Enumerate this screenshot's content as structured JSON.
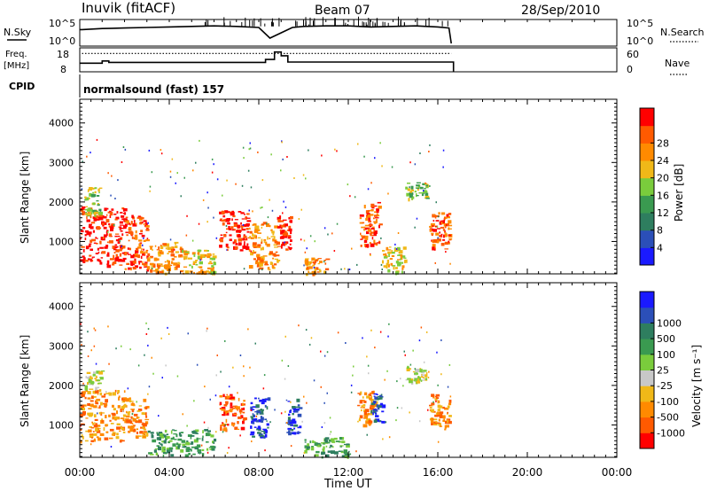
{
  "header": {
    "station": "Inuvik (fitACF)",
    "beam": "Beam 07",
    "date": "28/Sep/2010"
  },
  "labels": {
    "nsky": "N.Sky",
    "nsearch": "N.Search",
    "freq": "Freq.",
    "freq_unit": "[MHz]",
    "nave": "Nave",
    "cpid": "CPID",
    "cpid_value": "normalsound (fast) 157"
  },
  "colors": {
    "power": [
      "#1a1aff",
      "#2b4fb8",
      "#2e7e5f",
      "#3a9a50",
      "#7acc3c",
      "#f0b818",
      "#ff8a00",
      "#ff5a00",
      "#ff0000"
    ],
    "velocity": [
      "#ff0000",
      "#ff5a00",
      "#ff8a00",
      "#f0b818",
      "#c8c8c8",
      "#7acc3c",
      "#3a9a50",
      "#2e7e5f",
      "#2b4fb8",
      "#1a1aff"
    ]
  },
  "chart_data": [
    {
      "type": "line",
      "panel": "noise",
      "ylabel_left": "N.Sky",
      "ylabel_right": "N.Search",
      "yticks_left": [
        "10^5",
        "10^0"
      ],
      "yticks_right": [
        "10^5",
        "10^0"
      ],
      "x_hours": [
        0,
        0.1,
        1,
        2,
        3,
        4,
        5,
        6,
        7,
        8,
        8.5,
        9,
        9.5,
        10,
        11,
        12,
        13,
        14,
        15,
        16,
        16.5,
        16.6
      ],
      "sky_level": [
        0.62,
        0.62,
        0.66,
        0.68,
        0.7,
        0.72,
        0.74,
        0.76,
        0.74,
        0.7,
        0.3,
        0.5,
        0.7,
        0.74,
        0.76,
        0.76,
        0.72,
        0.74,
        0.76,
        0.72,
        0.68,
        0.1
      ]
    },
    {
      "type": "line",
      "panel": "frequency",
      "ylabel_left": "Freq. [MHz]",
      "ylabel_right": "Nave",
      "yticks_left": [
        "18",
        "8"
      ],
      "yticks_right": [
        "60",
        "0"
      ],
      "x_hours": [
        0,
        1.0,
        1.0,
        1.3,
        1.3,
        8.3,
        8.3,
        8.7,
        8.7,
        9.0,
        9.0,
        9.3,
        9.3,
        16.7
      ],
      "freq_mhz": [
        11.2,
        11.2,
        12.4,
        12.4,
        11.6,
        11.6,
        13.2,
        13.2,
        17.2,
        17.2,
        15.2,
        15.2,
        11.8,
        11.8
      ],
      "nave_dotted": 46
    },
    {
      "type": "heatmap",
      "panel": "power",
      "ylabel": "Slant Range [km]",
      "yticks": [
        "1000",
        "2000",
        "3000",
        "4000"
      ],
      "ylim": [
        180,
        4600
      ],
      "colorbar_label": "Power [dB]",
      "colorbar_ticks": [
        "4",
        "8",
        "12",
        "16",
        "20",
        "24",
        "28"
      ],
      "blobs": [
        {
          "x0": 0.0,
          "x1": 2.0,
          "y0": 400,
          "y1": 1900,
          "level": 8
        },
        {
          "x0": 0.2,
          "x1": 0.9,
          "y0": 1700,
          "y1": 2400,
          "level": 4
        },
        {
          "x0": 2.0,
          "x1": 3.0,
          "y0": 300,
          "y1": 1700,
          "level": 7
        },
        {
          "x0": 3.0,
          "x1": 4.5,
          "y0": 200,
          "y1": 1000,
          "level": 6
        },
        {
          "x0": 4.5,
          "x1": 6.0,
          "y0": 200,
          "y1": 800,
          "level": 5
        },
        {
          "x0": 6.2,
          "x1": 7.5,
          "y0": 800,
          "y1": 1800,
          "level": 8
        },
        {
          "x0": 7.5,
          "x1": 8.8,
          "y0": 300,
          "y1": 1500,
          "level": 6
        },
        {
          "x0": 8.8,
          "x1": 9.4,
          "y0": 800,
          "y1": 1700,
          "level": 8
        },
        {
          "x0": 10.0,
          "x1": 11.0,
          "y0": 200,
          "y1": 600,
          "level": 6
        },
        {
          "x0": 12.5,
          "x1": 13.4,
          "y0": 900,
          "y1": 2000,
          "level": 7
        },
        {
          "x0": 13.5,
          "x1": 14.5,
          "y0": 200,
          "y1": 900,
          "level": 5
        },
        {
          "x0": 14.5,
          "x1": 15.5,
          "y0": 2100,
          "y1": 2500,
          "level": 4
        },
        {
          "x0": 15.6,
          "x1": 16.5,
          "y0": 800,
          "y1": 1800,
          "level": 7
        }
      ]
    },
    {
      "type": "heatmap",
      "panel": "velocity",
      "ylabel": "Slant Range [km]",
      "yticks": [
        "1000",
        "2000",
        "3000",
        "4000"
      ],
      "ylim": [
        180,
        4600
      ],
      "colorbar_label": "Velocity [m s⁻¹]",
      "colorbar_ticks": [
        "-1000",
        "-500",
        "-100",
        "-25",
        "25",
        "100",
        "500",
        "1000"
      ],
      "blobs": [
        {
          "x0": 0.0,
          "x1": 2.0,
          "y0": 600,
          "y1": 1900,
          "level": 2
        },
        {
          "x0": 0.2,
          "x1": 1.0,
          "y0": 1900,
          "y1": 2400,
          "level": 4
        },
        {
          "x0": 2.0,
          "x1": 3.0,
          "y0": 700,
          "y1": 1700,
          "level": 2
        },
        {
          "x0": 3.0,
          "x1": 6.0,
          "y0": 250,
          "y1": 900,
          "level": 6
        },
        {
          "x0": 6.2,
          "x1": 7.3,
          "y0": 900,
          "y1": 1800,
          "level": 1
        },
        {
          "x0": 7.6,
          "x1": 8.4,
          "y0": 700,
          "y1": 1700,
          "level": 8
        },
        {
          "x0": 9.2,
          "x1": 9.8,
          "y0": 800,
          "y1": 1700,
          "level": 8
        },
        {
          "x0": 10.0,
          "x1": 12.0,
          "y0": 200,
          "y1": 700,
          "level": 6
        },
        {
          "x0": 12.4,
          "x1": 13.2,
          "y0": 1000,
          "y1": 1900,
          "level": 2
        },
        {
          "x0": 13.0,
          "x1": 13.5,
          "y0": 1100,
          "y1": 1800,
          "level": 8
        },
        {
          "x0": 14.5,
          "x1": 15.5,
          "y0": 2100,
          "y1": 2500,
          "level": 4
        },
        {
          "x0": 15.6,
          "x1": 16.5,
          "y0": 900,
          "y1": 1800,
          "level": 2
        }
      ]
    }
  ],
  "xaxis": {
    "label": "Time UT",
    "ticks": [
      "00:00",
      "04:00",
      "08:00",
      "12:00",
      "16:00",
      "20:00",
      "00:00"
    ]
  }
}
